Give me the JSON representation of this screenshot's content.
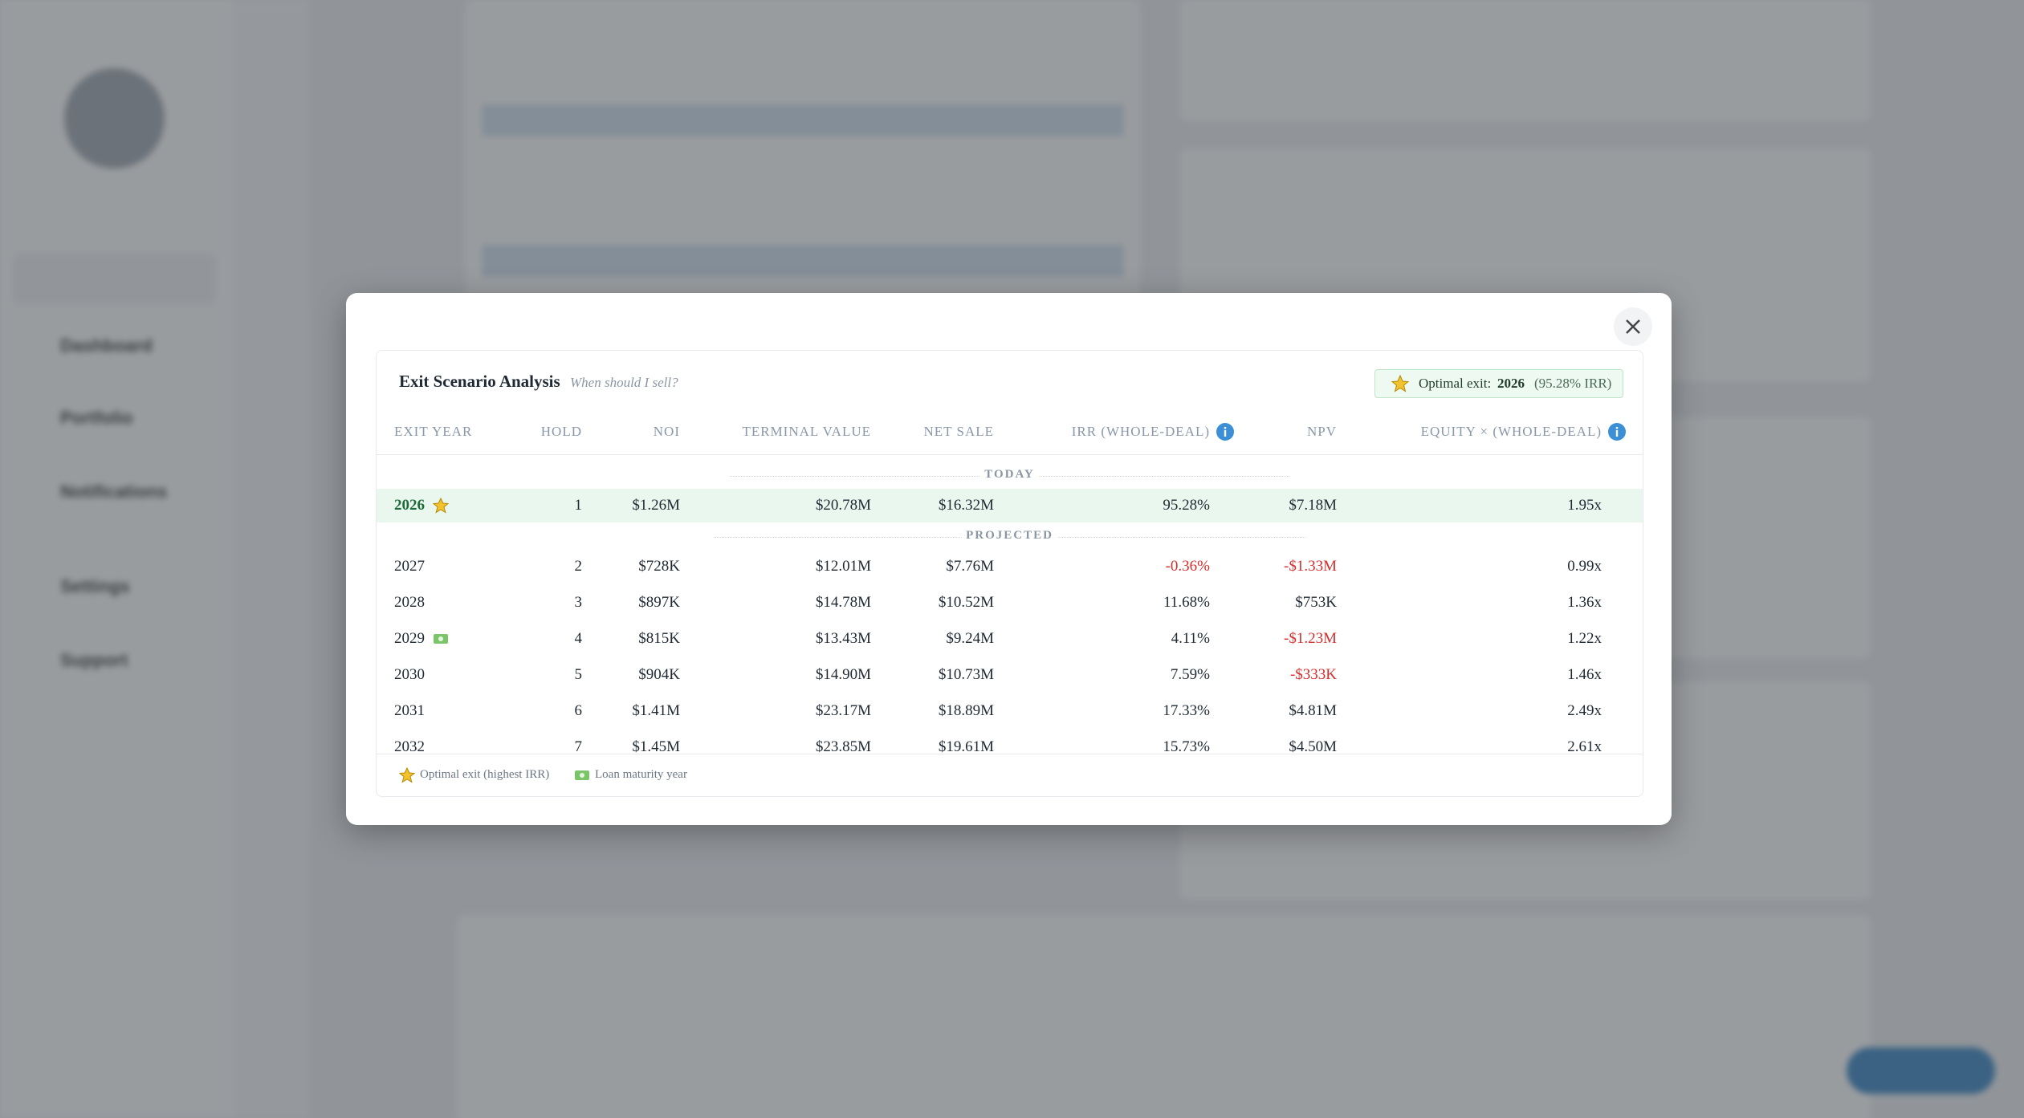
{
  "modal": {
    "title": "Exit Scenario Analysis",
    "subtitle": "When should I sell?",
    "optimal_badge": {
      "prefix": "Optimal exit:",
      "year": "2026",
      "detail": "(95.28% IRR)"
    },
    "columns": [
      "EXIT YEAR",
      "HOLD",
      "NOI",
      "TERMINAL VALUE",
      "NET SALE",
      "IRR (WHOLE-DEAL)",
      "NPV",
      "EQUITY × (WHOLE-DEAL)"
    ],
    "sections": [
      {
        "label": "TODAY",
        "rows": [
          {
            "icon": "star",
            "cells": [
              "2026",
              "1",
              "$1.26M",
              "$20.78M",
              "$16.32M",
              "95.28%",
              "$7.18M",
              "1.95x"
            ]
          }
        ]
      },
      {
        "label": "PROJECTED",
        "rows": [
          {
            "cells": [
              "2027",
              "2",
              "$728K",
              "$12.01M",
              "$7.76M",
              "-0.36%",
              "-$1.33M",
              "0.99x"
            ]
          },
          {
            "cells": [
              "2028",
              "3",
              "$897K",
              "$14.78M",
              "$10.52M",
              "11.68%",
              "$753K",
              "1.36x"
            ]
          },
          {
            "icon": "money",
            "cells": [
              "2029",
              "4",
              "$815K",
              "$13.43M",
              "$9.24M",
              "4.11%",
              "-$1.23M",
              "1.22x"
            ]
          },
          {
            "cells": [
              "2030",
              "5",
              "$904K",
              "$14.90M",
              "$10.73M",
              "7.59%",
              "-$333K",
              "1.46x"
            ]
          },
          {
            "cells": [
              "2031",
              "6",
              "$1.41M",
              "$23.17M",
              "$18.89M",
              "17.33%",
              "$4.81M",
              "2.49x"
            ]
          },
          {
            "cells": [
              "2032",
              "7",
              "$1.45M",
              "$23.85M",
              "$19.61M",
              "15.73%",
              "$4.50M",
              "2.61x"
            ]
          }
        ]
      }
    ],
    "legend": [
      "Optimal exit (highest IRR)",
      "Loan maturity year"
    ]
  },
  "background": {
    "nav": [
      "Dashboard",
      "Portfolio",
      "Notifications",
      "Settings",
      "Support"
    ]
  }
}
